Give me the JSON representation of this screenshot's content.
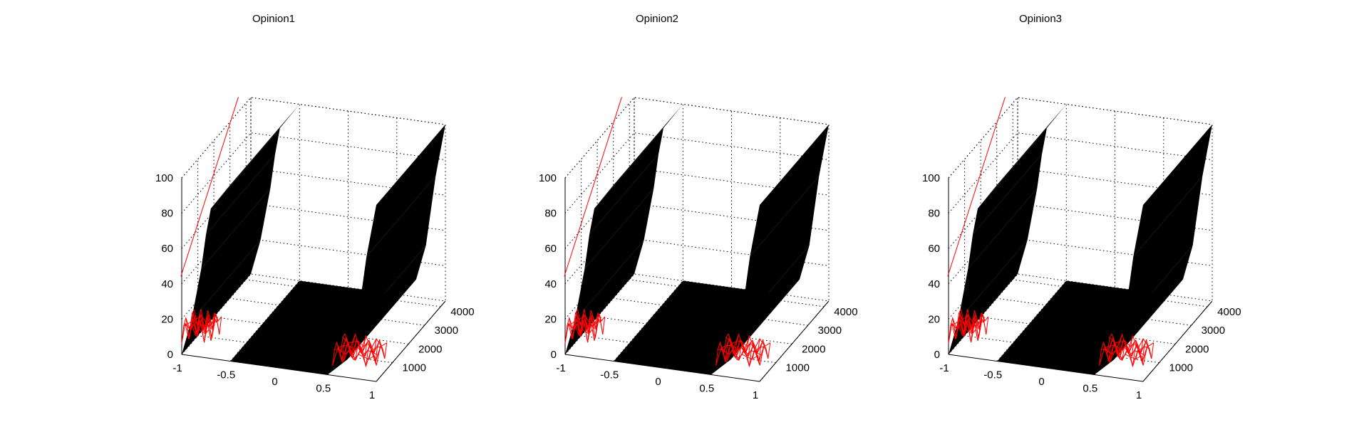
{
  "figure": {
    "background": "#ffffff"
  },
  "chart_data": [
    {
      "type": "surface3d",
      "title": "Opinion1",
      "xlabel": "",
      "ylabel": "",
      "zlabel": "",
      "x_ticks": [
        "-1",
        "-0.5",
        "0",
        "0.5",
        "1"
      ],
      "y_ticks": [
        "1000",
        "2000",
        "3000",
        "4000"
      ],
      "z_ticks": [
        "0",
        "20",
        "40",
        "60",
        "80",
        "100"
      ],
      "xlim": [
        -1,
        1
      ],
      "ylim": [
        0,
        4300
      ],
      "zlim": [
        0,
        100
      ],
      "grid": true,
      "colors": {
        "surface": "#000000",
        "edges": "#ff0000"
      },
      "series": [
        {
          "x": [
            -1,
            -0.9,
            -0.8,
            -0.75,
            -0.7,
            -0.5
          ],
          "y_at_max": 4300,
          "z": [
            0,
            20,
            50,
            70,
            85,
            100
          ]
        },
        {
          "x": [
            0.5,
            0.7,
            0.8,
            0.9,
            1
          ],
          "y_at_max": 4300,
          "z": [
            0,
            10,
            30,
            70,
            100
          ]
        }
      ]
    },
    {
      "type": "surface3d",
      "title": "Opinion2",
      "xlabel": "",
      "ylabel": "",
      "zlabel": "",
      "x_ticks": [
        "-1",
        "-0.5",
        "0",
        "0.5",
        "1"
      ],
      "y_ticks": [
        "1000",
        "2000",
        "3000",
        "4000"
      ],
      "z_ticks": [
        "0",
        "20",
        "40",
        "60",
        "80",
        "100"
      ],
      "xlim": [
        -1,
        1
      ],
      "ylim": [
        0,
        4300
      ],
      "zlim": [
        0,
        100
      ],
      "grid": true,
      "colors": {
        "surface": "#000000",
        "edges": "#ff0000"
      },
      "series": [
        {
          "x": [
            -1,
            -0.9,
            -0.8,
            -0.75,
            -0.7,
            -0.5
          ],
          "y_at_max": 4300,
          "z": [
            0,
            20,
            50,
            70,
            85,
            100
          ]
        },
        {
          "x": [
            0.5,
            0.7,
            0.8,
            0.9,
            1
          ],
          "y_at_max": 4300,
          "z": [
            0,
            10,
            30,
            70,
            100
          ]
        }
      ]
    },
    {
      "type": "surface3d",
      "title": "Opinion3",
      "xlabel": "",
      "ylabel": "",
      "zlabel": "",
      "x_ticks": [
        "-1",
        "-0.5",
        "0",
        "0.5",
        "1"
      ],
      "y_ticks": [
        "1000",
        "2000",
        "3000",
        "4000"
      ],
      "z_ticks": [
        "0",
        "20",
        "40",
        "60",
        "80",
        "100"
      ],
      "xlim": [
        -1,
        1
      ],
      "ylim": [
        0,
        4300
      ],
      "zlim": [
        0,
        100
      ],
      "grid": true,
      "colors": {
        "surface": "#000000",
        "edges": "#ff0000"
      },
      "series": [
        {
          "x": [
            -1,
            -0.9,
            -0.8,
            -0.75,
            -0.7,
            -0.5
          ],
          "y_at_max": 4300,
          "z": [
            0,
            20,
            50,
            70,
            85,
            100
          ]
        },
        {
          "x": [
            0.5,
            0.7,
            0.8,
            0.9,
            1
          ],
          "y_at_max": 4300,
          "z": [
            0,
            10,
            30,
            70,
            100
          ]
        }
      ]
    }
  ]
}
